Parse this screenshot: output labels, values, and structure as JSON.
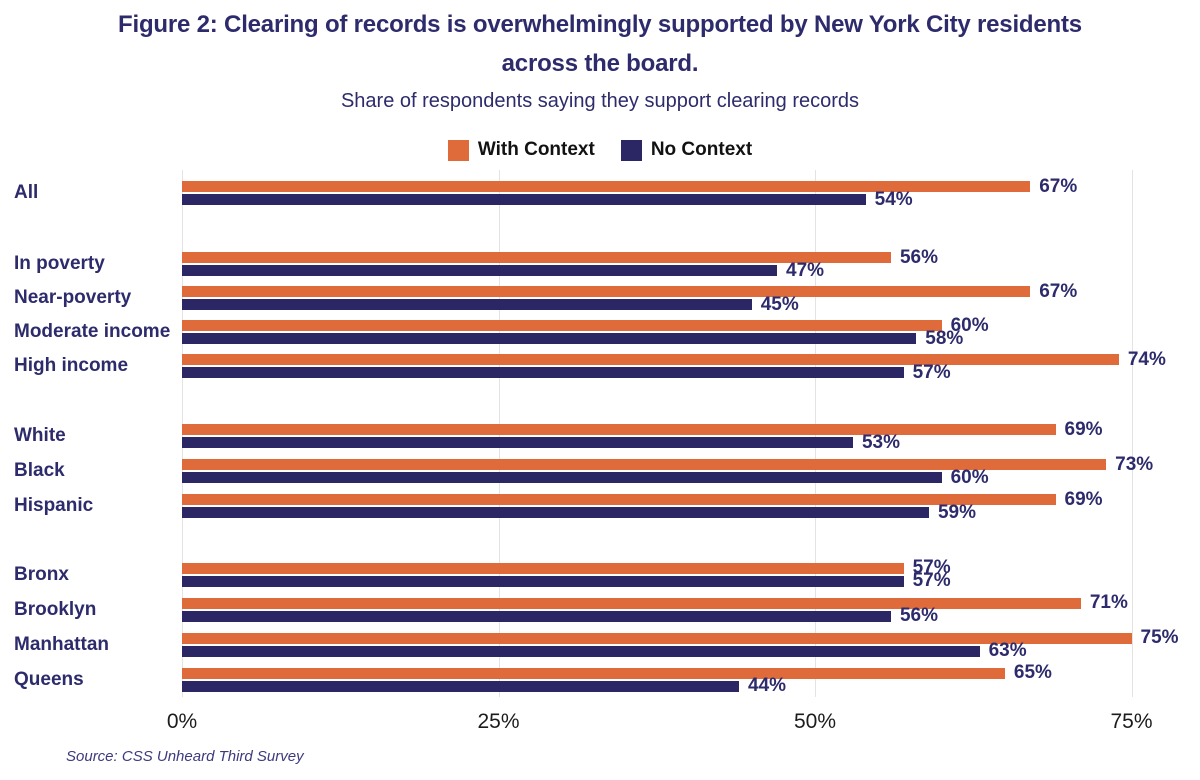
{
  "title": {
    "line1": "Figure 2: Clearing of records is overwhelmingly supported by New York City residents",
    "line2": "across the board."
  },
  "subtitle": "Share of respondents saying they support clearing records",
  "legend": [
    {
      "label": "With Context",
      "color": "#DF6B3B"
    },
    {
      "label": "No Context",
      "color": "#2B2765"
    }
  ],
  "source": "Source: CSS Unheard Third Survey",
  "chart_data": {
    "type": "bar",
    "orientation": "horizontal",
    "title": "Share of respondents saying they support clearing records",
    "series_names": [
      "With Context",
      "No Context"
    ],
    "colors": {
      "with_context": "#DF6B3B",
      "no_context": "#2B2765",
      "value_label": "#2D2B6B",
      "gridline": "#E3E3E3"
    },
    "x_axis": {
      "ticks": [
        {
          "label": "0%",
          "value": 0
        },
        {
          "label": "25%",
          "value": 25
        },
        {
          "label": "50%",
          "value": 50
        },
        {
          "label": "75%",
          "value": 75
        }
      ],
      "unit": "%",
      "range": [
        0,
        79.6
      ],
      "grid": true
    },
    "legend_position": "top",
    "groups": [
      {
        "rows": [
          {
            "label": "All",
            "with_context": 67,
            "no_context": 54
          }
        ]
      },
      {
        "rows": [
          {
            "label": "In poverty",
            "with_context": 56,
            "no_context": 47
          },
          {
            "label": "Near-poverty",
            "with_context": 67,
            "no_context": 45
          },
          {
            "label": "Moderate income",
            "with_context": 60,
            "no_context": 58
          },
          {
            "label": "High income",
            "with_context": 74,
            "no_context": 57
          }
        ]
      },
      {
        "rows": [
          {
            "label": "White",
            "with_context": 69,
            "no_context": 53
          },
          {
            "label": "Black",
            "with_context": 73,
            "no_context": 60
          },
          {
            "label": "Hispanic",
            "with_context": 69,
            "no_context": 59
          }
        ]
      },
      {
        "rows": [
          {
            "label": "Bronx",
            "with_context": 57,
            "no_context": 57
          },
          {
            "label": "Brooklyn",
            "with_context": 71,
            "no_context": 56
          },
          {
            "label": "Manhattan",
            "with_context": 75,
            "no_context": 63
          },
          {
            "label": "Queens",
            "with_context": 65,
            "no_context": 44
          }
        ]
      }
    ]
  }
}
